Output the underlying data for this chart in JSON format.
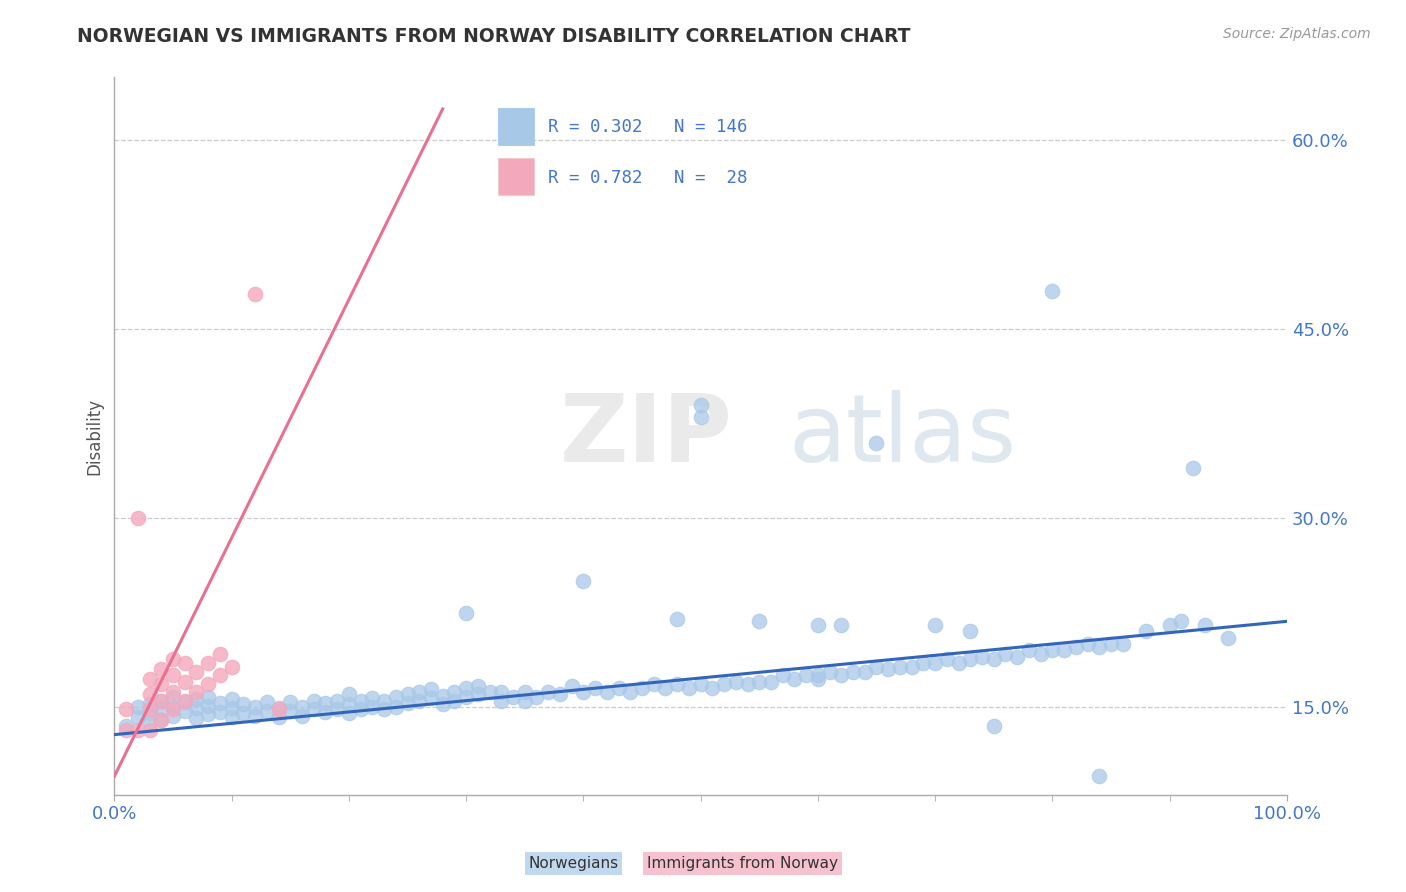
{
  "title": "NORWEGIAN VS IMMIGRANTS FROM NORWAY DISABILITY CORRELATION CHART",
  "source_text": "Source: ZipAtlas.com",
  "ylabel": "Disability",
  "watermark_zip": "ZIP",
  "watermark_atlas": "atlas",
  "xmin": 0.0,
  "xmax": 1.0,
  "ymin": 0.08,
  "ymax": 0.65,
  "yticks": [
    0.15,
    0.3,
    0.45,
    0.6
  ],
  "ytick_labels": [
    "15.0%",
    "30.0%",
    "45.0%",
    "60.0%"
  ],
  "legend_blue_r": "0.302",
  "legend_blue_n": "146",
  "legend_pink_r": "0.782",
  "legend_pink_n": "28",
  "blue_color": "#A8C8E8",
  "pink_color": "#F4A8BC",
  "blue_line_color": "#3366BB",
  "pink_line_color": "#E87090",
  "title_color": "#333333",
  "axis_label_color": "#4477CC",
  "source_color": "#999999",
  "grid_color": "#CCCCCC",
  "blue_trend_x0": 0.0,
  "blue_trend_y0": 0.128,
  "blue_trend_x1": 1.0,
  "blue_trend_y1": 0.218,
  "pink_trend_x0": 0.0,
  "pink_trend_y0": 0.095,
  "pink_trend_x1": 0.28,
  "pink_trend_y1": 0.625,
  "blue_scatter_x": [
    0.01,
    0.02,
    0.02,
    0.03,
    0.03,
    0.03,
    0.04,
    0.04,
    0.04,
    0.05,
    0.05,
    0.05,
    0.06,
    0.06,
    0.07,
    0.07,
    0.07,
    0.08,
    0.08,
    0.08,
    0.09,
    0.09,
    0.1,
    0.1,
    0.1,
    0.11,
    0.11,
    0.12,
    0.12,
    0.13,
    0.13,
    0.14,
    0.14,
    0.15,
    0.15,
    0.16,
    0.16,
    0.17,
    0.17,
    0.18,
    0.18,
    0.19,
    0.19,
    0.2,
    0.2,
    0.2,
    0.21,
    0.21,
    0.22,
    0.22,
    0.23,
    0.23,
    0.24,
    0.24,
    0.25,
    0.25,
    0.26,
    0.26,
    0.27,
    0.27,
    0.28,
    0.28,
    0.29,
    0.29,
    0.3,
    0.3,
    0.31,
    0.31,
    0.32,
    0.33,
    0.33,
    0.34,
    0.35,
    0.35,
    0.36,
    0.37,
    0.38,
    0.39,
    0.4,
    0.4,
    0.41,
    0.42,
    0.43,
    0.44,
    0.45,
    0.46,
    0.47,
    0.48,
    0.49,
    0.5,
    0.5,
    0.51,
    0.52,
    0.53,
    0.54,
    0.55,
    0.56,
    0.57,
    0.58,
    0.59,
    0.6,
    0.6,
    0.61,
    0.62,
    0.63,
    0.64,
    0.65,
    0.66,
    0.67,
    0.68,
    0.69,
    0.7,
    0.71,
    0.72,
    0.73,
    0.74,
    0.75,
    0.76,
    0.77,
    0.78,
    0.79,
    0.8,
    0.81,
    0.82,
    0.83,
    0.84,
    0.85,
    0.86,
    0.88,
    0.9,
    0.92,
    0.93,
    0.5,
    0.65,
    0.7,
    0.73,
    0.8,
    0.84,
    0.91,
    0.95,
    0.62,
    0.75,
    0.3,
    0.48,
    0.55,
    0.6
  ],
  "blue_scatter_y": [
    0.135,
    0.142,
    0.15,
    0.138,
    0.145,
    0.152,
    0.14,
    0.148,
    0.155,
    0.143,
    0.15,
    0.158,
    0.147,
    0.154,
    0.141,
    0.149,
    0.156,
    0.144,
    0.151,
    0.158,
    0.146,
    0.153,
    0.142,
    0.149,
    0.156,
    0.145,
    0.152,
    0.143,
    0.15,
    0.147,
    0.154,
    0.142,
    0.149,
    0.147,
    0.154,
    0.143,
    0.15,
    0.148,
    0.155,
    0.146,
    0.153,
    0.148,
    0.155,
    0.145,
    0.152,
    0.16,
    0.148,
    0.155,
    0.15,
    0.157,
    0.148,
    0.155,
    0.15,
    0.158,
    0.153,
    0.16,
    0.155,
    0.162,
    0.157,
    0.164,
    0.152,
    0.159,
    0.155,
    0.162,
    0.158,
    0.165,
    0.16,
    0.167,
    0.162,
    0.155,
    0.162,
    0.158,
    0.155,
    0.162,
    0.158,
    0.162,
    0.16,
    0.167,
    0.162,
    0.25,
    0.165,
    0.162,
    0.165,
    0.162,
    0.165,
    0.168,
    0.165,
    0.168,
    0.165,
    0.168,
    0.39,
    0.165,
    0.168,
    0.17,
    0.168,
    0.17,
    0.17,
    0.175,
    0.172,
    0.175,
    0.172,
    0.175,
    0.178,
    0.175,
    0.178,
    0.178,
    0.182,
    0.18,
    0.182,
    0.182,
    0.185,
    0.185,
    0.188,
    0.185,
    0.188,
    0.19,
    0.188,
    0.192,
    0.19,
    0.195,
    0.192,
    0.195,
    0.195,
    0.198,
    0.2,
    0.198,
    0.2,
    0.2,
    0.21,
    0.215,
    0.34,
    0.215,
    0.38,
    0.36,
    0.215,
    0.21,
    0.48,
    0.095,
    0.218,
    0.205,
    0.215,
    0.135,
    0.225,
    0.22,
    0.218,
    0.215
  ],
  "pink_scatter_x": [
    0.01,
    0.01,
    0.02,
    0.02,
    0.03,
    0.03,
    0.03,
    0.03,
    0.04,
    0.04,
    0.04,
    0.04,
    0.05,
    0.05,
    0.05,
    0.05,
    0.06,
    0.06,
    0.06,
    0.07,
    0.07,
    0.08,
    0.08,
    0.09,
    0.09,
    0.1,
    0.12,
    0.14
  ],
  "pink_scatter_y": [
    0.132,
    0.148,
    0.132,
    0.3,
    0.132,
    0.148,
    0.16,
    0.172,
    0.14,
    0.155,
    0.168,
    0.18,
    0.148,
    0.162,
    0.175,
    0.188,
    0.155,
    0.17,
    0.185,
    0.162,
    0.178,
    0.168,
    0.185,
    0.175,
    0.192,
    0.182,
    0.478,
    0.148
  ]
}
